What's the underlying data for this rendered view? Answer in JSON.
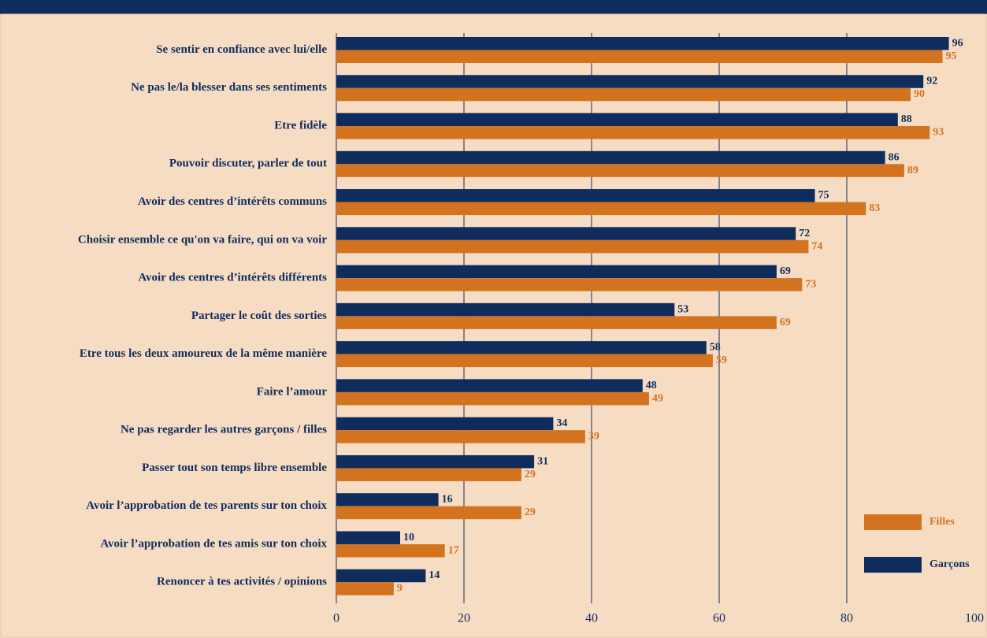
{
  "chart_data": {
    "type": "bar",
    "orientation": "horizontal",
    "categories": [
      "Se sentir en confiance avec lui/elle",
      "Ne pas le/la blesser dans ses sentiments",
      "Etre fidèle",
      "Pouvoir discuter, parler de tout",
      "Avoir des centres d’intérêts communs",
      "Choisir ensemble ce qu'on va faire, qui on va voir",
      "Avoir des centres d’intérêts différents",
      "Partager le coût des sorties",
      "Etre tous les deux amoureux de la même manière",
      "Faire l’amour",
      "Ne pas regarder les autres garçons / filles",
      "Passer tout son temps libre ensemble",
      "Avoir l’approbation de tes parents sur ton choix",
      "Avoir l’approbation de tes amis sur ton choix",
      "Renoncer à tes activités / opinions"
    ],
    "series": [
      {
        "name": "Garçons",
        "color": "#0f2d5c",
        "values": [
          96,
          92,
          88,
          86,
          75,
          72,
          69,
          53,
          58,
          48,
          34,
          31,
          16,
          10,
          14
        ]
      },
      {
        "name": "Filles",
        "color": "#d4731f",
        "values": [
          95,
          90,
          93,
          89,
          83,
          74,
          73,
          69,
          59,
          49,
          39,
          29,
          29,
          17,
          9
        ]
      }
    ],
    "xlim": [
      0,
      100
    ],
    "xticks": [
      0,
      20,
      40,
      60,
      80,
      100
    ],
    "grid": true,
    "legend": "lower right"
  }
}
